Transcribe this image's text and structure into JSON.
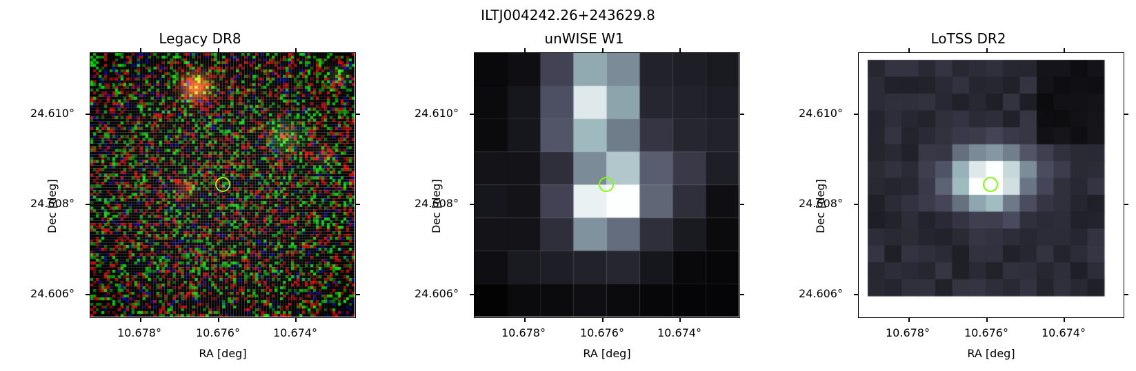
{
  "figure": {
    "title": "ILTJ004242.26+243629.8"
  },
  "panels": [
    {
      "title": "Legacy DR8",
      "xlabel": "RA [deg]",
      "ylabel": "Dec [deg]",
      "xticks": [
        "10.678°",
        "10.676°",
        "10.674°"
      ],
      "yticks": [
        "24.610°",
        "24.608°",
        "24.606°"
      ]
    },
    {
      "title": "unWISE W1",
      "xlabel": "RA [deg]",
      "ylabel": "Dec [deg]",
      "xticks": [
        "10.678°",
        "10.676°",
        "10.674°"
      ],
      "yticks": [
        "24.610°",
        "24.608°",
        "24.606°"
      ]
    },
    {
      "title": "LoTSS DR2",
      "xlabel": "RA [deg]",
      "ylabel": "Dec [deg]",
      "xticks": [
        "10.678°",
        "10.676°",
        "10.674°"
      ],
      "yticks": [
        "24.610°",
        "24.608°",
        "24.606°"
      ]
    }
  ],
  "marker": {
    "color": "#7fff00"
  }
}
